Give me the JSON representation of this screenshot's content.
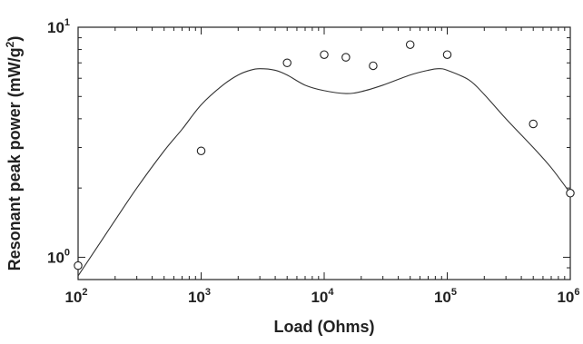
{
  "chart_data": {
    "type": "scatter",
    "xlabel": "Load (Ohms)",
    "ylabel": "Resonant peak power (mW/g²)",
    "ylabel_parts": {
      "main": "Resonant peak power (mW/g",
      "sup": "2",
      "end": ")"
    },
    "xscale": "log",
    "yscale": "log",
    "xlim": [
      100,
      1000000
    ],
    "ylim": [
      0.8,
      10
    ],
    "grid": false,
    "x_ticks": [
      {
        "value": 100,
        "base": "10",
        "exp": "2"
      },
      {
        "value": 1000,
        "base": "10",
        "exp": "3"
      },
      {
        "value": 10000,
        "base": "10",
        "exp": "4"
      },
      {
        "value": 100000,
        "base": "10",
        "exp": "5"
      },
      {
        "value": 1000000,
        "base": "10",
        "exp": "6"
      }
    ],
    "y_ticks": [
      {
        "value": 1,
        "base": "10",
        "exp": "0"
      },
      {
        "value": 10,
        "base": "10",
        "exp": "1"
      }
    ],
    "series": [
      {
        "kind": "points",
        "marker": "open-circle",
        "x": [
          100,
          1000,
          5000,
          10000,
          15000,
          25000,
          50000,
          100000,
          500000,
          1000000
        ],
        "y": [
          0.92,
          2.9,
          7.0,
          7.6,
          7.4,
          6.8,
          8.4,
          7.6,
          3.8,
          1.9
        ]
      },
      {
        "kind": "fit-line",
        "x": [
          100,
          150,
          200,
          300,
          500,
          700,
          1000,
          1500,
          2000,
          2500,
          3000,
          4000,
          5000,
          7000,
          10000,
          15000,
          20000,
          30000,
          50000,
          70000,
          85000,
          100000,
          150000,
          200000,
          300000,
          500000,
          700000,
          1000000
        ],
        "y": [
          0.83,
          1.15,
          1.45,
          2.0,
          2.9,
          3.6,
          4.6,
          5.6,
          6.2,
          6.5,
          6.6,
          6.5,
          6.2,
          5.6,
          5.3,
          5.15,
          5.25,
          5.6,
          6.2,
          6.5,
          6.6,
          6.5,
          5.9,
          5.1,
          4.0,
          3.0,
          2.45,
          1.9
        ]
      }
    ]
  }
}
